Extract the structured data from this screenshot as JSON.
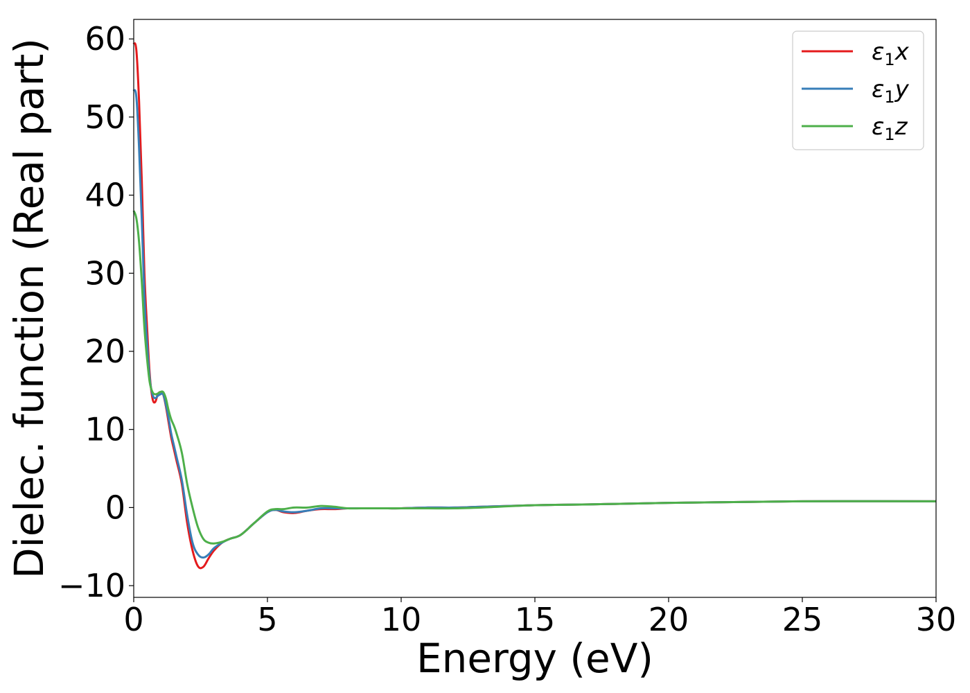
{
  "chart_data": {
    "type": "line",
    "title": "",
    "xlabel": "Energy (eV)",
    "ylabel": "Dielec. function (Real part)",
    "xlim": [
      0,
      30
    ],
    "ylim": [
      -11.5,
      62.5
    ],
    "xticks": [
      0,
      5,
      10,
      15,
      20,
      25,
      30
    ],
    "yticks": [
      -10,
      0,
      10,
      20,
      30,
      40,
      50,
      60
    ],
    "xtick_labels": [
      "0",
      "5",
      "10",
      "15",
      "20",
      "25",
      "30"
    ],
    "ytick_labels": [
      "−10",
      "0",
      "10",
      "20",
      "30",
      "40",
      "50",
      "60"
    ],
    "grid": false,
    "legend_position": "top-right",
    "series": [
      {
        "name": "ε₁x",
        "legend_base": "ε",
        "legend_sub": "1",
        "legend_suffix": "x",
        "color": "#e41a1c",
        "x": [
          0,
          0.1,
          0.2,
          0.3,
          0.4,
          0.5,
          0.6,
          0.7,
          0.8,
          0.9,
          1.0,
          1.1,
          1.2,
          1.3,
          1.4,
          1.5,
          1.6,
          1.8,
          2.0,
          2.2,
          2.4,
          2.6,
          2.8,
          3.0,
          3.3,
          3.6,
          4.0,
          4.5,
          5.0,
          5.3,
          5.6,
          6.0,
          6.5,
          7.0,
          7.5,
          8.0,
          8.5,
          9.0,
          9.5,
          10,
          11,
          12,
          13,
          15,
          17,
          20,
          25,
          30
        ],
        "y": [
          59.5,
          58.5,
          52,
          42,
          30,
          23,
          17,
          14,
          13.5,
          14.5,
          14.8,
          14.5,
          13,
          11,
          9,
          7.5,
          6,
          3,
          -2,
          -5.5,
          -7.5,
          -7.6,
          -6.5,
          -5.5,
          -4.5,
          -4,
          -3.5,
          -2,
          -0.6,
          -0.3,
          -0.6,
          -0.7,
          -0.4,
          -0.2,
          -0.2,
          -0.1,
          -0.1,
          -0.1,
          -0.1,
          -0.1,
          0,
          0,
          0.1,
          0.3,
          0.4,
          0.6,
          0.8,
          0.8
        ]
      },
      {
        "name": "ε₁y",
        "legend_base": "ε",
        "legend_sub": "1",
        "legend_suffix": "y",
        "color": "#377eb8",
        "x": [
          0,
          0.1,
          0.2,
          0.3,
          0.4,
          0.5,
          0.6,
          0.7,
          0.8,
          0.9,
          1.0,
          1.1,
          1.2,
          1.3,
          1.4,
          1.5,
          1.6,
          1.8,
          2.0,
          2.2,
          2.4,
          2.6,
          2.8,
          3.0,
          3.3,
          3.6,
          4.0,
          4.5,
          5.0,
          5.3,
          5.6,
          6.0,
          6.5,
          7.0,
          7.5,
          8.0,
          8.5,
          9.0,
          9.5,
          10,
          11,
          12,
          13,
          15,
          17,
          20,
          25,
          30
        ],
        "y": [
          53.5,
          52.5,
          46,
          37,
          27,
          21,
          16.5,
          14.5,
          14,
          14.3,
          14.5,
          14.5,
          13.2,
          11.5,
          9.5,
          8,
          6.5,
          3.5,
          -1,
          -4.5,
          -6,
          -6.4,
          -6,
          -5.2,
          -4.5,
          -4,
          -3.5,
          -2,
          -0.6,
          -0.3,
          -0.5,
          -0.6,
          -0.4,
          -0.1,
          -0.1,
          -0.1,
          -0.1,
          -0.1,
          -0.1,
          -0.1,
          0,
          0,
          0.1,
          0.3,
          0.4,
          0.6,
          0.8,
          0.8
        ]
      },
      {
        "name": "ε₁z",
        "legend_base": "ε",
        "legend_sub": "1",
        "legend_suffix": "z",
        "color": "#4daf4a",
        "x": [
          0,
          0.1,
          0.2,
          0.3,
          0.4,
          0.5,
          0.6,
          0.7,
          0.8,
          0.9,
          1.0,
          1.1,
          1.2,
          1.3,
          1.4,
          1.5,
          1.6,
          1.8,
          2.0,
          2.2,
          2.4,
          2.6,
          2.8,
          3.0,
          3.3,
          3.6,
          4.0,
          4.5,
          5.0,
          5.3,
          5.6,
          6.0,
          6.5,
          7.0,
          7.5,
          8.0,
          8.5,
          9.0,
          9.5,
          10,
          11,
          12,
          13,
          15,
          17,
          20,
          25,
          30
        ],
        "y": [
          38,
          37,
          34,
          29,
          23,
          19,
          16,
          14.8,
          14.5,
          14.6,
          14.8,
          14.8,
          14,
          12.5,
          11.3,
          10.5,
          9.5,
          7,
          3,
          0,
          -2.5,
          -4,
          -4.5,
          -4.6,
          -4.4,
          -4,
          -3.5,
          -2,
          -0.5,
          -0.2,
          -0.2,
          0,
          0,
          0.2,
          0.1,
          -0.1,
          -0.1,
          -0.1,
          -0.1,
          -0.1,
          -0.1,
          -0.1,
          0,
          0.3,
          0.4,
          0.6,
          0.8,
          0.8
        ]
      }
    ]
  }
}
